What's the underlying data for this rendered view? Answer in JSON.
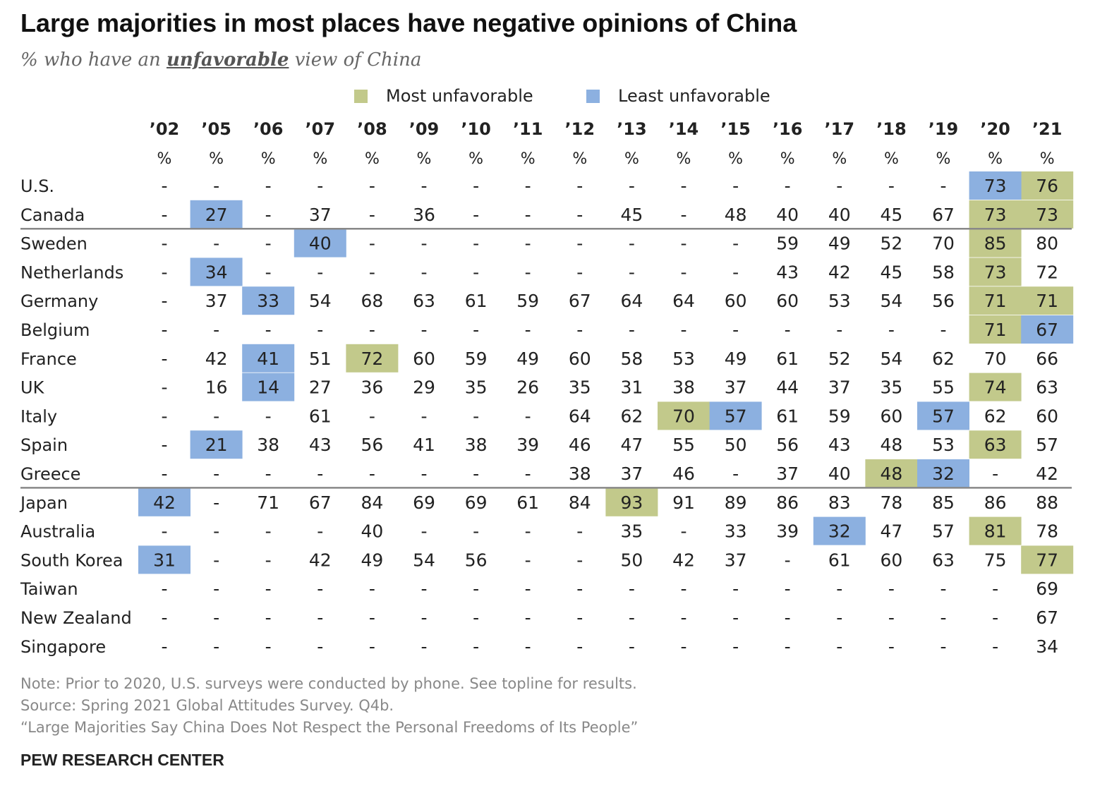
{
  "title": "Large majorities in most places have negative opinions of China",
  "subtitle": {
    "prefix": "% who have an",
    "emphasis": "unfavorable",
    "suffix": "view of China"
  },
  "legend": {
    "most": "Most unfavorable",
    "least": "Least unfavorable"
  },
  "colors": {
    "most": "#c2c98b",
    "least": "#8cb0e0"
  },
  "footer": {
    "note": "Note: Prior to 2020, U.S. surveys were conducted by phone. See topline for results.",
    "source": "Source: Spring 2021 Global Attitudes Survey. Q4b.",
    "report": "“Large Majorities Say China Does Not Respect the Personal Freedoms of Its People”",
    "org": "PEW RESEARCH CENTER"
  },
  "chart_data": {
    "type": "table",
    "title": "Large majorities in most places have negative opinions of China",
    "subtitle": "% who have an unfavorable view of China",
    "years": [
      "’02",
      "’05",
      "’06",
      "’07",
      "’08",
      "’09",
      "’10",
      "’11",
      "’12",
      "’13",
      "’14",
      "’15",
      "’16",
      "’17",
      "’18",
      "’19",
      "’20",
      "’21"
    ],
    "unit": "%",
    "missing": "-",
    "rows": [
      {
        "country": "U.S.",
        "values": [
          null,
          null,
          null,
          null,
          null,
          null,
          null,
          null,
          null,
          null,
          null,
          null,
          null,
          null,
          null,
          null,
          73,
          76
        ],
        "most": [
          17
        ],
        "least": [
          16
        ]
      },
      {
        "country": "Canada",
        "values": [
          null,
          27,
          null,
          37,
          null,
          36,
          null,
          null,
          null,
          45,
          null,
          48,
          40,
          40,
          45,
          67,
          73,
          73
        ],
        "most": [
          16,
          17
        ],
        "least": [
          1
        ]
      },
      {
        "country": "Sweden",
        "values": [
          null,
          null,
          null,
          40,
          null,
          null,
          null,
          null,
          null,
          null,
          null,
          null,
          59,
          49,
          52,
          70,
          85,
          80
        ],
        "most": [
          16
        ],
        "least": [
          3
        ]
      },
      {
        "country": "Netherlands",
        "values": [
          null,
          34,
          null,
          null,
          null,
          null,
          null,
          null,
          null,
          null,
          null,
          null,
          43,
          42,
          45,
          58,
          73,
          72
        ],
        "most": [
          16
        ],
        "least": [
          1
        ]
      },
      {
        "country": "Germany",
        "values": [
          null,
          37,
          33,
          54,
          68,
          63,
          61,
          59,
          67,
          64,
          64,
          60,
          60,
          53,
          54,
          56,
          71,
          71
        ],
        "most": [
          16,
          17
        ],
        "least": [
          2
        ]
      },
      {
        "country": "Belgium",
        "values": [
          null,
          null,
          null,
          null,
          null,
          null,
          null,
          null,
          null,
          null,
          null,
          null,
          null,
          null,
          null,
          null,
          71,
          67
        ],
        "most": [
          16
        ],
        "least": [
          17
        ]
      },
      {
        "country": "France",
        "values": [
          null,
          42,
          41,
          51,
          72,
          60,
          59,
          49,
          60,
          58,
          53,
          49,
          61,
          52,
          54,
          62,
          70,
          66
        ],
        "most": [
          4
        ],
        "least": [
          2
        ]
      },
      {
        "country": "UK",
        "values": [
          null,
          16,
          14,
          27,
          36,
          29,
          35,
          26,
          35,
          31,
          38,
          37,
          44,
          37,
          35,
          55,
          74,
          63
        ],
        "most": [
          16
        ],
        "least": [
          2
        ]
      },
      {
        "country": "Italy",
        "values": [
          null,
          null,
          null,
          61,
          null,
          null,
          null,
          null,
          64,
          62,
          70,
          57,
          61,
          59,
          60,
          57,
          62,
          60
        ],
        "most": [
          10
        ],
        "least": [
          11,
          15
        ]
      },
      {
        "country": "Spain",
        "values": [
          null,
          21,
          38,
          43,
          56,
          41,
          38,
          39,
          46,
          47,
          55,
          50,
          56,
          43,
          48,
          53,
          63,
          57
        ],
        "most": [
          16
        ],
        "least": [
          1
        ]
      },
      {
        "country": "Greece",
        "values": [
          null,
          null,
          null,
          null,
          null,
          null,
          null,
          null,
          38,
          37,
          46,
          null,
          37,
          40,
          48,
          32,
          null,
          42
        ],
        "most": [
          14
        ],
        "least": [
          15
        ]
      },
      {
        "country": "Japan",
        "values": [
          42,
          null,
          71,
          67,
          84,
          69,
          69,
          61,
          84,
          93,
          91,
          89,
          86,
          83,
          78,
          85,
          86,
          88
        ],
        "most": [
          9
        ],
        "least": [
          0
        ]
      },
      {
        "country": "Australia",
        "values": [
          null,
          null,
          null,
          null,
          40,
          null,
          null,
          null,
          null,
          35,
          null,
          33,
          39,
          32,
          47,
          57,
          81,
          78
        ],
        "most": [
          16
        ],
        "least": [
          13
        ]
      },
      {
        "country": "South Korea",
        "values": [
          31,
          null,
          null,
          42,
          49,
          54,
          56,
          null,
          null,
          50,
          42,
          37,
          null,
          61,
          60,
          63,
          75,
          77
        ],
        "most": [
          17
        ],
        "least": [
          0
        ]
      },
      {
        "country": "Taiwan",
        "values": [
          null,
          null,
          null,
          null,
          null,
          null,
          null,
          null,
          null,
          null,
          null,
          null,
          null,
          null,
          null,
          null,
          null,
          69
        ],
        "most": [],
        "least": []
      },
      {
        "country": "New Zealand",
        "values": [
          null,
          null,
          null,
          null,
          null,
          null,
          null,
          null,
          null,
          null,
          null,
          null,
          null,
          null,
          null,
          null,
          null,
          67
        ],
        "most": [],
        "least": []
      },
      {
        "country": "Singapore",
        "values": [
          null,
          null,
          null,
          null,
          null,
          null,
          null,
          null,
          null,
          null,
          null,
          null,
          null,
          null,
          null,
          null,
          null,
          34
        ],
        "most": [],
        "least": []
      }
    ],
    "group_dividers_after_rows": [
      1,
      10
    ]
  }
}
